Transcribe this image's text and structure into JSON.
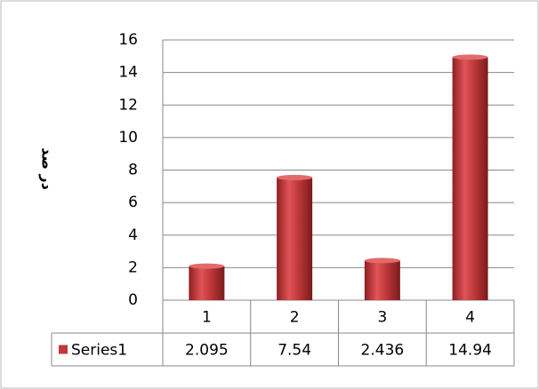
{
  "chart_data": {
    "type": "bar",
    "y_label": "در صد",
    "categories": [
      "1",
      "2",
      "3",
      "4"
    ],
    "series": [
      {
        "name": "Series1",
        "color": "#c0393b",
        "values": [
          2.095,
          7.54,
          2.436,
          14.94
        ]
      }
    ],
    "ylim": [
      0,
      16
    ],
    "yticks": [
      0,
      2,
      4,
      6,
      8,
      10,
      12,
      14,
      16
    ],
    "grid": true,
    "data_table": true
  }
}
